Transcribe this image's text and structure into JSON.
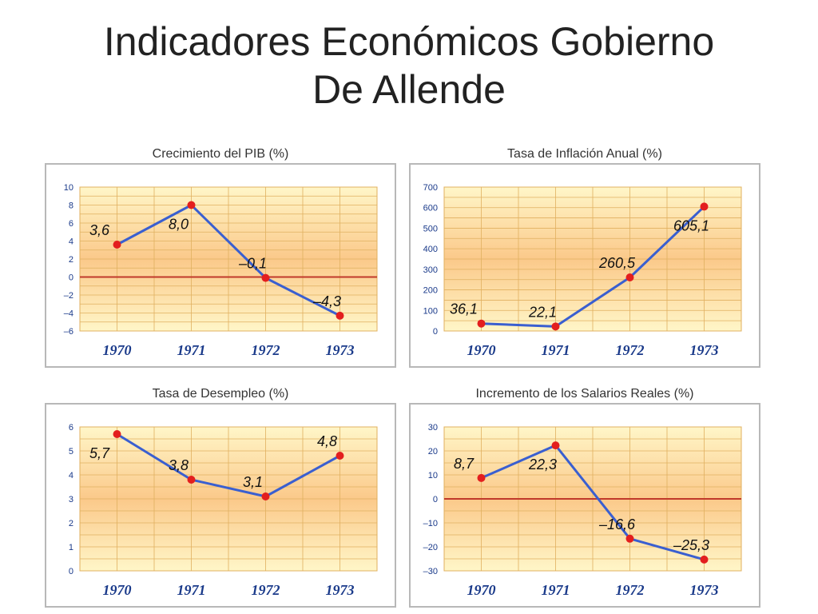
{
  "slide": {
    "title_line1": "Indicadores Económicos Gobierno",
    "title_line2": "De Allende"
  },
  "colors": {
    "line": "#3a5fd0",
    "marker": "#e31e1e",
    "zero_line": "#c0392b",
    "grid": "#e0b060",
    "bg_top": "#fff6c8",
    "bg_mid": "#fbc98a",
    "frame": "#b8b8b8"
  },
  "chart_data": [
    {
      "type": "line",
      "title": "Crecimiento del PIB (%)",
      "categories": [
        "1970",
        "1971",
        "1972",
        "1973"
      ],
      "values": [
        3.6,
        8.0,
        -0.1,
        -4.3
      ],
      "labels": [
        "3,6",
        "8,0",
        "–0,1",
        "–4,3"
      ],
      "ylim": [
        -6,
        10
      ],
      "yticks": [
        10,
        8,
        6,
        4,
        2,
        0,
        -2,
        -4,
        -6
      ],
      "ytick_labels": [
        "10",
        "8",
        "6",
        "4",
        "2",
        "0",
        "–2",
        "–4",
        "–6"
      ],
      "zero_line": true,
      "grid": true
    },
    {
      "type": "line",
      "title": "Tasa de Inflación Anual (%)",
      "categories": [
        "1970",
        "1971",
        "1972",
        "1973"
      ],
      "values": [
        36.1,
        22.1,
        260.5,
        605.1
      ],
      "labels": [
        "36,1",
        "22,1",
        "260,5",
        "605,1"
      ],
      "ylim": [
        0,
        700
      ],
      "yticks": [
        700,
        600,
        500,
        400,
        300,
        200,
        100,
        0
      ],
      "ytick_labels": [
        "700",
        "600",
        "500",
        "400",
        "300",
        "200",
        "100",
        "0"
      ],
      "zero_line": false,
      "grid": true
    },
    {
      "type": "line",
      "title": "Tasa de Desempleo (%)",
      "categories": [
        "1970",
        "1971",
        "1972",
        "1973"
      ],
      "values": [
        5.7,
        3.8,
        3.1,
        4.8
      ],
      "labels": [
        "5,7",
        "3,8",
        "3,1",
        "4,8"
      ],
      "ylim": [
        0,
        6
      ],
      "yticks": [
        6,
        5,
        4,
        3,
        2,
        1,
        0
      ],
      "ytick_labels": [
        "6",
        "5",
        "4",
        "3",
        "2",
        "1",
        "0"
      ],
      "zero_line": false,
      "grid": true
    },
    {
      "type": "line",
      "title": "Incremento de los Salarios Reales (%)",
      "categories": [
        "1970",
        "1971",
        "1972",
        "1973"
      ],
      "values": [
        8.7,
        22.3,
        -16.6,
        -25.3
      ],
      "labels": [
        "8,7",
        "22,3",
        "–16,6",
        "–25,3"
      ],
      "ylim": [
        -30,
        30
      ],
      "yticks": [
        30,
        20,
        10,
        0,
        -10,
        -20,
        -30
      ],
      "ytick_labels": [
        "30",
        "20",
        "10",
        "0",
        "–10",
        "–20",
        "–30"
      ],
      "zero_line": true,
      "grid": true
    }
  ]
}
